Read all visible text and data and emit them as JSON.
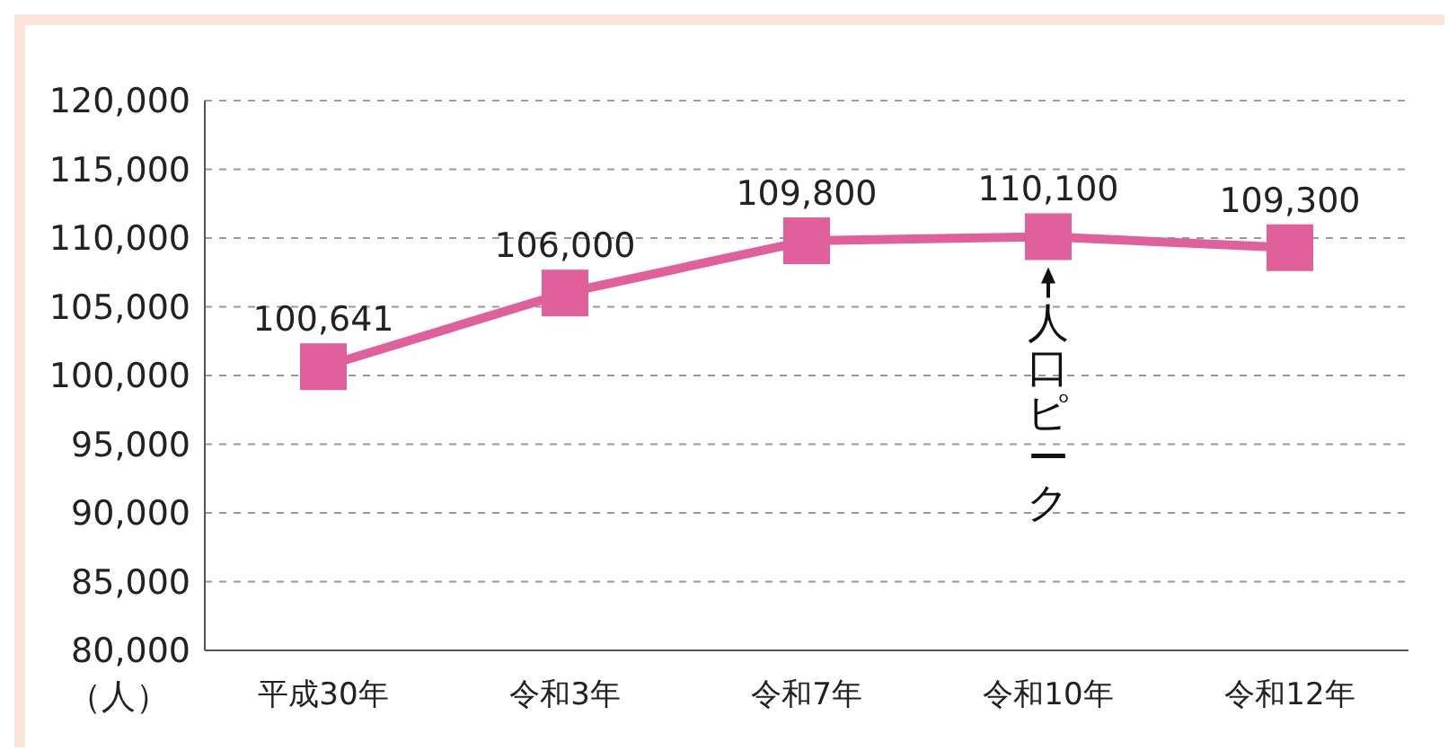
{
  "chart_data": {
    "type": "line",
    "ylabel": "（人）",
    "categories": [
      "平成30年",
      "令和3年",
      "令和7年",
      "令和10年",
      "令和12年"
    ],
    "series": [
      {
        "color": "#e0609c",
        "values": [
          100641,
          106000,
          109800,
          110100,
          109300
        ],
        "value_labels": [
          "100,641",
          "106,000",
          "109,800",
          "110,100",
          "109,300"
        ]
      }
    ],
    "ylim": [
      80000,
      120000
    ],
    "yticks": [
      {
        "value": 80000,
        "label": "80,000"
      },
      {
        "value": 85000,
        "label": "85,000"
      },
      {
        "value": 90000,
        "label": "90,000"
      },
      {
        "value": 95000,
        "label": "95,000"
      },
      {
        "value": 100000,
        "label": "100,000"
      },
      {
        "value": 105000,
        "label": "105,000"
      },
      {
        "value": 110000,
        "label": "110,000"
      },
      {
        "value": 115000,
        "label": "115,000"
      },
      {
        "value": 120000,
        "label": "120,000"
      }
    ],
    "grid": "y",
    "marker": "square",
    "line_style": "solid",
    "annotations": [
      {
        "text": "人口ピーク",
        "x": "令和10年",
        "y": 110100
      }
    ]
  }
}
